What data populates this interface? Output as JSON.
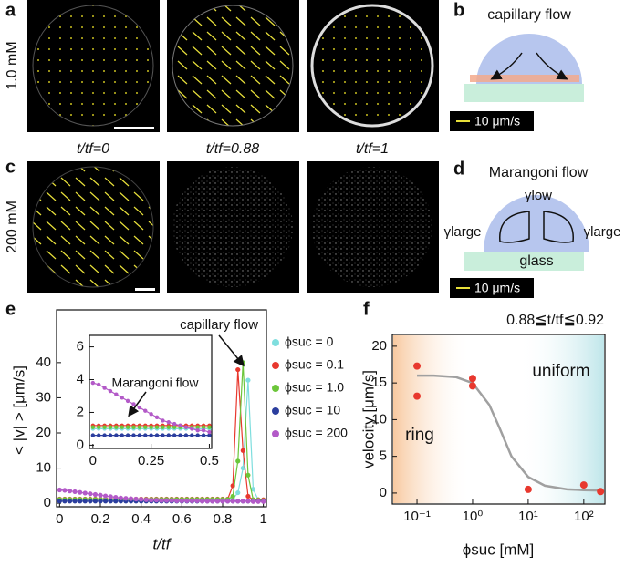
{
  "panels": {
    "a": {
      "label": "a",
      "row_label": "1.0 mM"
    },
    "b": {
      "label": "b",
      "title": "capillary flow",
      "scale": "10 μm/s"
    },
    "c": {
      "label": "c",
      "row_label": "200 mM",
      "times": [
        "t/tf=0",
        "t/tf=0.88",
        "t/tf=1"
      ]
    },
    "d": {
      "label": "d",
      "title": "Marangoni flow",
      "gamma_low": "γlow",
      "gamma_large": "γlarge",
      "substrate": "glass",
      "scale": "10 μm/s"
    },
    "e": {
      "label": "e"
    },
    "f": {
      "label": "f"
    }
  },
  "chart_data": [
    {
      "type": "line",
      "x_label": "t/tf",
      "y_label": "< |v| > [μm/s]",
      "annotation": "capillary flow",
      "xlim": [
        -0.015,
        1.015
      ],
      "ylim": [
        -1,
        55
      ],
      "xticks": [
        0,
        0.2,
        0.4,
        0.6,
        0.8,
        1
      ],
      "yticks": [
        0,
        10,
        20,
        30,
        40
      ],
      "x": [
        0,
        0.025,
        0.05,
        0.075,
        0.1,
        0.125,
        0.15,
        0.175,
        0.2,
        0.225,
        0.25,
        0.275,
        0.3,
        0.325,
        0.35,
        0.375,
        0.4,
        0.425,
        0.45,
        0.475,
        0.5,
        0.525,
        0.55,
        0.575,
        0.6,
        0.625,
        0.65,
        0.675,
        0.7,
        0.725,
        0.75,
        0.775,
        0.8,
        0.825,
        0.85,
        0.875,
        0.9,
        0.925,
        0.95,
        0.975,
        1
      ],
      "series": [
        {
          "name": "ϕsuc = 0",
          "color": "#7fdede",
          "values": [
            1,
            1,
            1,
            1,
            1,
            1,
            1,
            1,
            1,
            1,
            1,
            1,
            1,
            1,
            1,
            1,
            1,
            1,
            1,
            1,
            1,
            1,
            1,
            1,
            1,
            1,
            1,
            1,
            1,
            1,
            1,
            1,
            1,
            1,
            1.2,
            3,
            10,
            35,
            4,
            1,
            0.8
          ]
        },
        {
          "name": "ϕsuc = 0.1",
          "color": "#e8382e",
          "values": [
            1.2,
            1.2,
            1.2,
            1.2,
            1.2,
            1.2,
            1.2,
            1.2,
            1.2,
            1.2,
            1.2,
            1.2,
            1.2,
            1.2,
            1.2,
            1.2,
            1.2,
            1.2,
            1.2,
            1.2,
            1.2,
            1.2,
            1.2,
            1.2,
            1.2,
            1.2,
            1.2,
            1.2,
            1.2,
            1.2,
            1.2,
            1.2,
            1.2,
            1.2,
            5,
            38,
            15,
            2,
            1,
            1,
            1
          ]
        },
        {
          "name": "ϕsuc = 1.0",
          "color": "#6cc63a",
          "values": [
            1.1,
            1.1,
            1.1,
            1.1,
            1.1,
            1.1,
            1.1,
            1.1,
            1.1,
            1.1,
            1.1,
            1.1,
            1.1,
            1.1,
            1.1,
            1.1,
            1.1,
            1.1,
            1.1,
            1.1,
            1.1,
            1.1,
            1.1,
            1.1,
            1.1,
            1.1,
            1.1,
            1.1,
            1.1,
            1.1,
            1.1,
            1.1,
            1.1,
            1.1,
            2,
            12,
            40,
            8,
            1,
            0.9,
            0.8
          ]
        },
        {
          "name": "ϕsuc = 10",
          "color": "#2b3e9e",
          "values": [
            0.6,
            0.6,
            0.6,
            0.6,
            0.6,
            0.6,
            0.6,
            0.6,
            0.6,
            0.6,
            0.6,
            0.6,
            0.6,
            0.6,
            0.6,
            0.6,
            0.6,
            0.6,
            0.6,
            0.6,
            0.6,
            0.6,
            0.6,
            0.6,
            0.6,
            0.6,
            0.6,
            0.6,
            0.6,
            0.6,
            0.6,
            0.6,
            0.6,
            0.6,
            0.6,
            0.6,
            0.6,
            0.6,
            0.6,
            0.6,
            0.6
          ]
        },
        {
          "name": "ϕsuc = 200",
          "color": "#b35ac8",
          "values": [
            3.8,
            3.7,
            3.5,
            3.3,
            3.1,
            2.9,
            2.7,
            2.5,
            2.3,
            2.1,
            1.9,
            1.7,
            1.5,
            1.4,
            1.3,
            1.2,
            1.1,
            1.0,
            0.9,
            0.9,
            0.8,
            0.8,
            0.8,
            0.7,
            0.7,
            0.7,
            0.7,
            0.7,
            0.6,
            0.6,
            0.6,
            0.6,
            0.6,
            0.6,
            0.6,
            0.6,
            0.6,
            0.6,
            0.5,
            0.5,
            0.5
          ]
        }
      ],
      "inset": {
        "annotation": "Marangoni flow",
        "xlim": [
          -0.015,
          0.51
        ],
        "ylim": [
          -0.2,
          6.7
        ],
        "xticks": [
          0,
          0.25,
          0.5
        ],
        "yticks": [
          0,
          2,
          4,
          6
        ]
      }
    },
    {
      "type": "scatter",
      "title": "0.88≦t/tf≦0.92",
      "x_label": "ϕsuc [mM]",
      "y_label": "velocity [μm/s]",
      "regions": [
        "ring",
        "uniform"
      ],
      "log_x": true,
      "xlim": [
        0.036,
        240
      ],
      "ylim": [
        -1.5,
        21.6
      ],
      "xticks": [
        {
          "value": 0.1,
          "label": "10⁻¹"
        },
        {
          "value": 1,
          "label": "10⁰"
        },
        {
          "value": 10,
          "label": "10¹"
        },
        {
          "value": 100,
          "label": "10²"
        }
      ],
      "yticks": [
        0,
        5,
        10,
        15,
        20
      ],
      "x": [
        0.1,
        0.1,
        1,
        1,
        10,
        100,
        200
      ],
      "values": [
        17.3,
        13.2,
        15.6,
        14.6,
        0.5,
        1.1,
        0.2
      ],
      "color": "#e8382e",
      "fit": {
        "color": "#a0a0a0",
        "x": [
          0.1,
          0.2,
          0.5,
          1,
          2,
          3,
          5,
          10,
          20,
          50,
          100,
          200
        ],
        "values": [
          16,
          16,
          15.8,
          15,
          12,
          9,
          5,
          2.2,
          1.0,
          0.5,
          0.4,
          0.35
        ]
      }
    }
  ]
}
